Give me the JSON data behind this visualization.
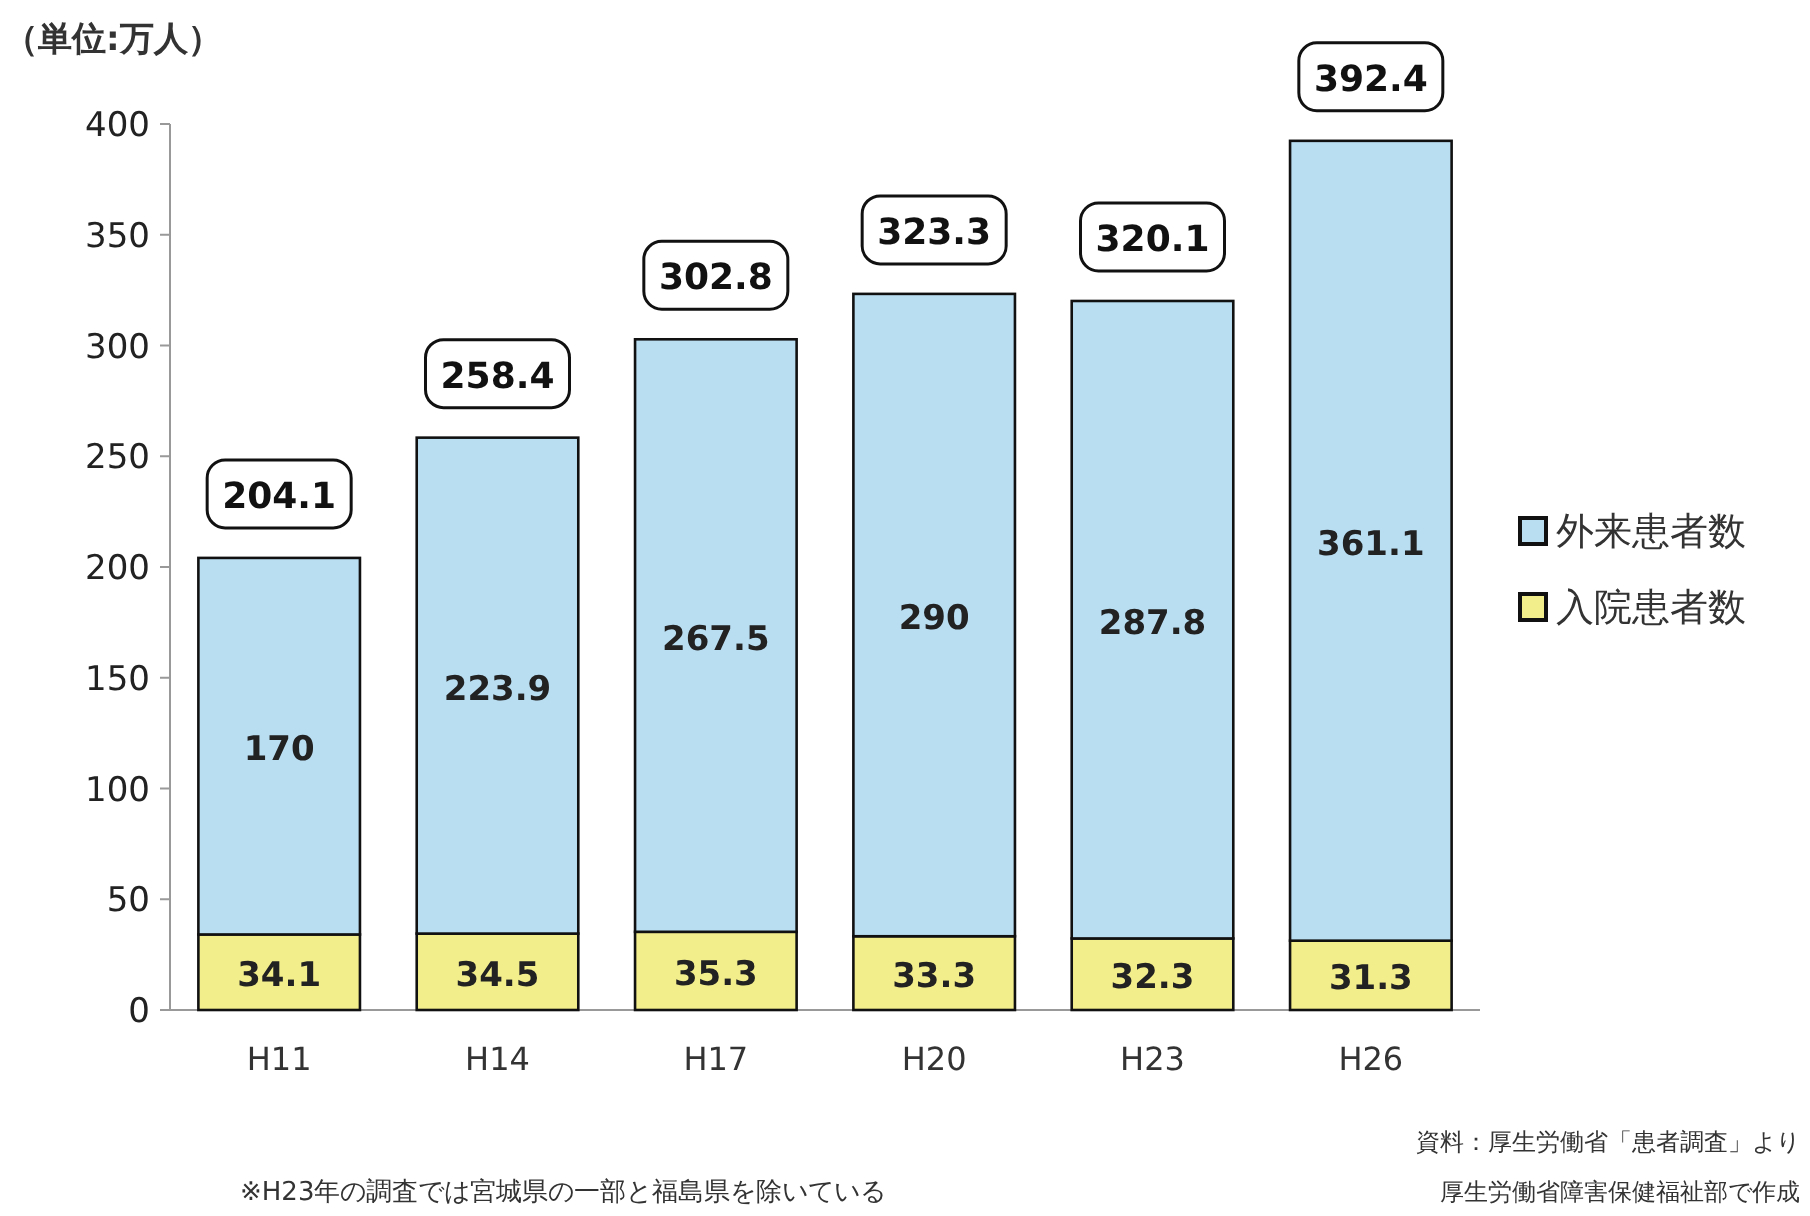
{
  "chart_data": {
    "type": "bar",
    "stacked": true,
    "ylabel": "（単位:万人）",
    "categories": [
      "H11",
      "H14",
      "H17",
      "H20",
      "H23",
      "H26"
    ],
    "series": [
      {
        "name": "入院患者数",
        "color": "#f3ee8c",
        "values": [
          34.1,
          34.5,
          35.3,
          33.3,
          32.3,
          31.3
        ]
      },
      {
        "name": "外来患者数",
        "color": "#b9def2",
        "values": [
          170,
          223.9,
          267.5,
          290,
          287.8,
          361.1
        ]
      }
    ],
    "totals": [
      "204.1",
      "258.4",
      "302.8",
      "323.3",
      "320.1",
      "392.4"
    ],
    "data_labels": true,
    "ylim": [
      0,
      400
    ],
    "yticks": [
      0,
      50,
      100,
      150,
      200,
      250,
      300,
      350,
      400
    ],
    "legend": "right",
    "annotations": [
      "※H23年の調査では宮城県の一部と福島県を除いている",
      "資料：厚生労働省「患者調査」より",
      "厚生労働省障害保健福祉部で作成"
    ]
  }
}
